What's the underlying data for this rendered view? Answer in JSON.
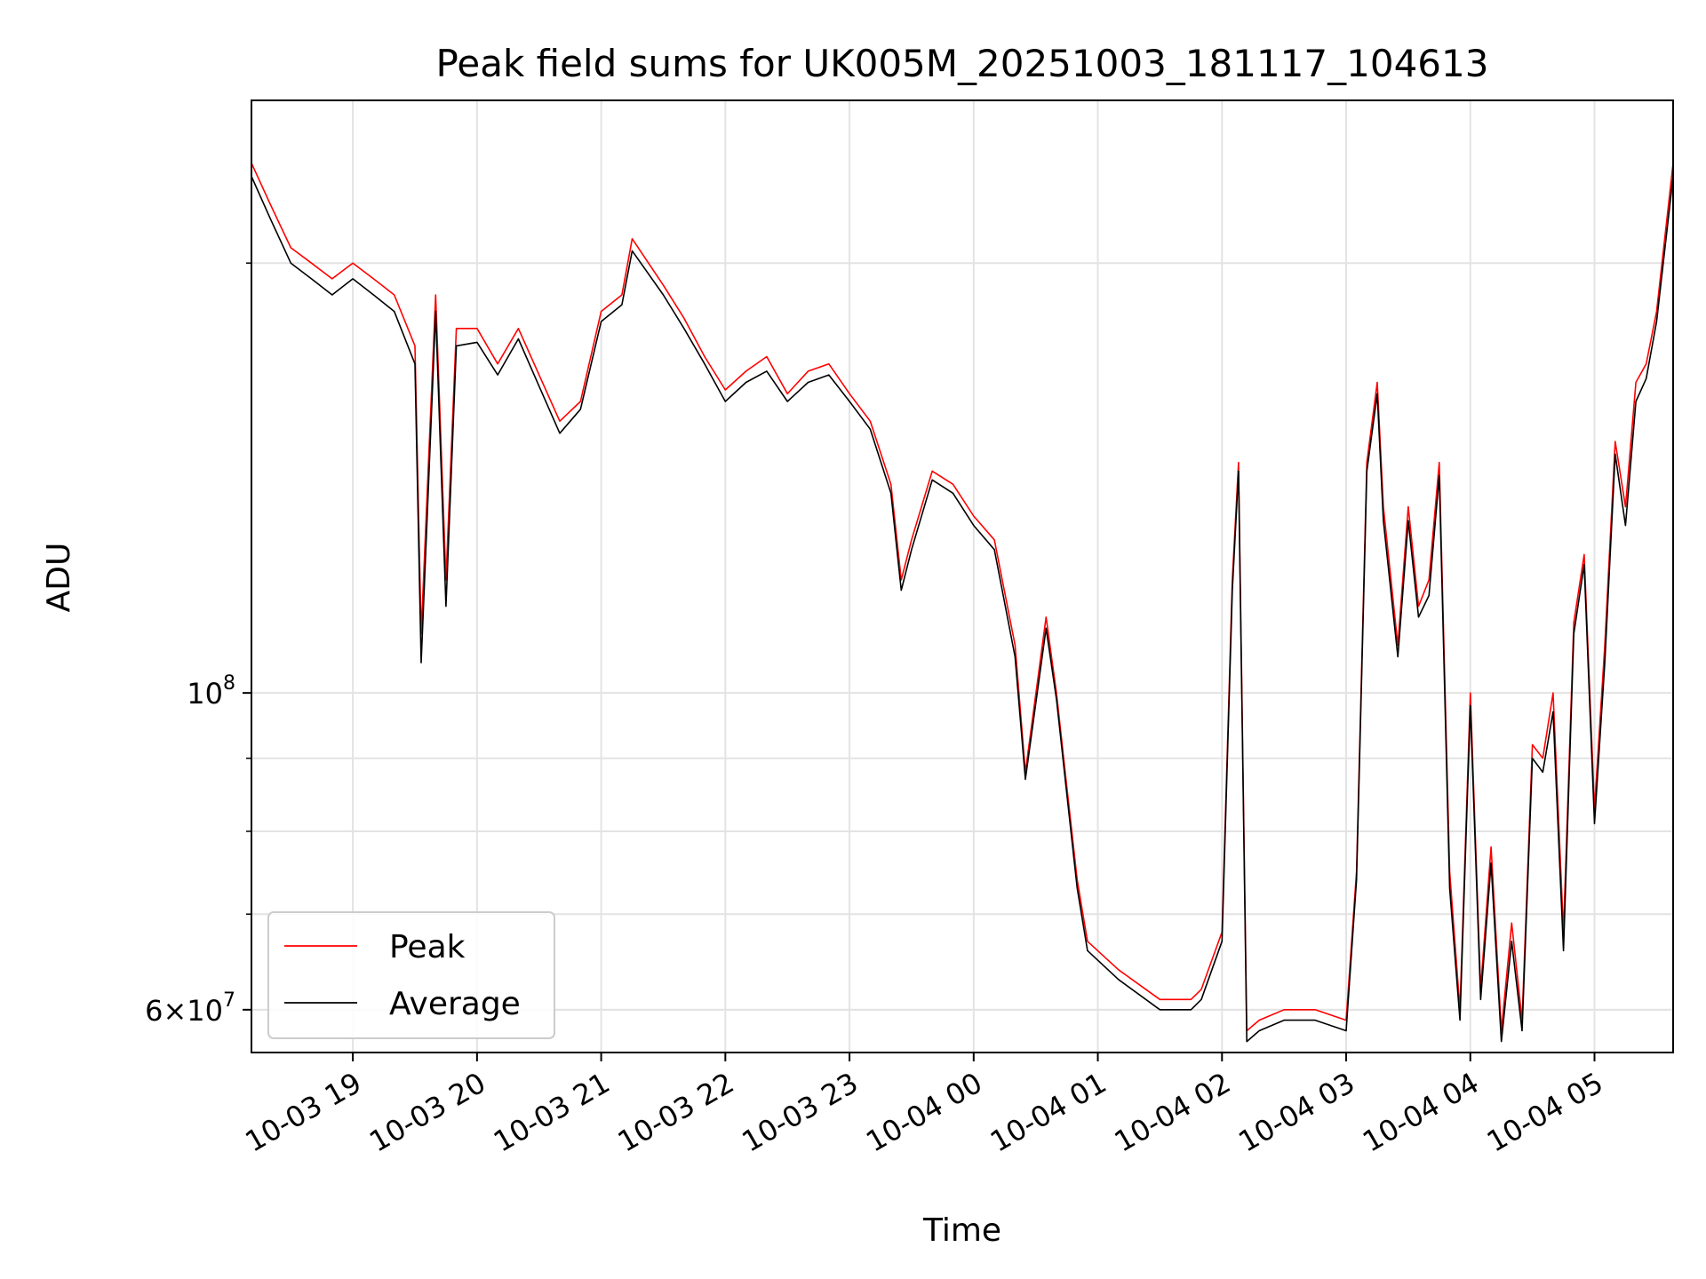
{
  "chart_data": {
    "type": "line",
    "title": "Peak field sums for UK005M_20251003_181117_104613",
    "xlabel": "Time",
    "ylabel": "ADU",
    "yscale": "log",
    "xlim": [
      "2025-10-03 18:11",
      "2025-10-04 05:38"
    ],
    "ylim": [
      56000000.0,
      260000000.0
    ],
    "grid": true,
    "legend_position": "lower-left",
    "x_ticks": [
      "2025-10-03 19:00",
      "2025-10-03 20:00",
      "2025-10-03 21:00",
      "2025-10-03 22:00",
      "2025-10-03 23:00",
      "2025-10-04 00:00",
      "2025-10-04 01:00",
      "2025-10-04 02:00",
      "2025-10-04 03:00",
      "2025-10-04 04:00",
      "2025-10-04 05:00"
    ],
    "x_tick_labels": [
      "10-03 19",
      "10-03 20",
      "10-03 21",
      "10-03 22",
      "10-03 23",
      "10-04 00",
      "10-04 01",
      "10-04 02",
      "10-04 03",
      "10-04 04",
      "10-04 05"
    ],
    "y_major_ticks": [
      {
        "value": 100000000,
        "label": "10^8"
      },
      {
        "value": 60000000,
        "label": "6×10^7"
      }
    ],
    "y_minor_ticks": [
      60000000,
      70000000,
      80000000,
      90000000,
      200000000
    ],
    "x": [
      "2025-10-03 18:11",
      "2025-10-03 18:20",
      "2025-10-03 18:30",
      "2025-10-03 18:40",
      "2025-10-03 18:50",
      "2025-10-03 19:00",
      "2025-10-03 19:10",
      "2025-10-03 19:20",
      "2025-10-03 19:30",
      "2025-10-03 19:33",
      "2025-10-03 19:40",
      "2025-10-03 19:45",
      "2025-10-03 19:50",
      "2025-10-03 20:00",
      "2025-10-03 20:10",
      "2025-10-03 20:20",
      "2025-10-03 20:30",
      "2025-10-03 20:40",
      "2025-10-03 20:50",
      "2025-10-03 21:00",
      "2025-10-03 21:10",
      "2025-10-03 21:15",
      "2025-10-03 21:30",
      "2025-10-03 21:40",
      "2025-10-03 21:50",
      "2025-10-03 22:00",
      "2025-10-03 22:10",
      "2025-10-03 22:20",
      "2025-10-03 22:30",
      "2025-10-03 22:40",
      "2025-10-03 22:50",
      "2025-10-03 23:00",
      "2025-10-03 23:10",
      "2025-10-03 23:20",
      "2025-10-03 23:25",
      "2025-10-03 23:30",
      "2025-10-03 23:40",
      "2025-10-03 23:50",
      "2025-10-04 00:00",
      "2025-10-04 00:10",
      "2025-10-04 00:20",
      "2025-10-04 00:25",
      "2025-10-04 00:35",
      "2025-10-04 00:40",
      "2025-10-04 00:45",
      "2025-10-04 00:50",
      "2025-10-04 00:55",
      "2025-10-04 01:10",
      "2025-10-04 01:30",
      "2025-10-04 01:45",
      "2025-10-04 01:50",
      "2025-10-04 02:00",
      "2025-10-04 02:05",
      "2025-10-04 02:08",
      "2025-10-04 02:12",
      "2025-10-04 02:18",
      "2025-10-04 02:30",
      "2025-10-04 02:45",
      "2025-10-04 03:00",
      "2025-10-04 03:05",
      "2025-10-04 03:10",
      "2025-10-04 03:15",
      "2025-10-04 03:18",
      "2025-10-04 03:25",
      "2025-10-04 03:30",
      "2025-10-04 03:35",
      "2025-10-04 03:40",
      "2025-10-04 03:45",
      "2025-10-04 03:50",
      "2025-10-04 03:55",
      "2025-10-04 04:00",
      "2025-10-04 04:05",
      "2025-10-04 04:10",
      "2025-10-04 04:15",
      "2025-10-04 04:20",
      "2025-10-04 04:25",
      "2025-10-04 04:30",
      "2025-10-04 04:35",
      "2025-10-04 04:40",
      "2025-10-04 04:45",
      "2025-10-04 04:50",
      "2025-10-04 04:55",
      "2025-10-04 05:00",
      "2025-10-04 05:05",
      "2025-10-04 05:10",
      "2025-10-04 05:15",
      "2025-10-04 05:20",
      "2025-10-04 05:25",
      "2025-10-04 05:30",
      "2025-10-04 05:38"
    ],
    "series": [
      {
        "name": "Peak",
        "color": "#ff0000",
        "values": [
          235000000,
          220000000,
          205000000,
          200000000,
          195000000,
          200000000,
          195000000,
          190000000,
          175000000,
          110000000,
          190000000,
          120000000,
          180000000,
          180000000,
          170000000,
          180000000,
          167000000,
          155000000,
          160000000,
          185000000,
          190000000,
          208000000,
          193000000,
          183000000,
          172000000,
          163000000,
          168000000,
          172000000,
          162000000,
          168000000,
          170000000,
          162000000,
          155000000,
          140000000,
          120000000,
          128000000,
          143000000,
          140000000,
          133000000,
          128000000,
          108000000,
          88000000,
          113000000,
          100000000,
          86000000,
          74000000,
          67000000,
          64000000,
          61000000,
          61000000,
          62000000,
          68000000,
          120000000,
          145000000,
          58000000,
          59000000,
          60000000,
          60000000,
          59000000,
          75000000,
          145000000,
          165000000,
          135000000,
          108000000,
          135000000,
          115000000,
          120000000,
          145000000,
          75000000,
          60000000,
          100000000,
          62000000,
          78000000,
          58000000,
          69000000,
          59000000,
          92000000,
          90000000,
          100000000,
          68000000,
          112000000,
          125000000,
          83000000,
          108000000,
          150000000,
          135000000,
          165000000,
          170000000,
          185000000,
          235000000
        ]
      },
      {
        "name": "Average",
        "color": "#000000",
        "values": [
          230000000,
          215000000,
          200000000,
          195000000,
          190000000,
          195000000,
          190000000,
          185000000,
          170000000,
          105000000,
          185000000,
          115000000,
          175000000,
          176000000,
          167000000,
          177000000,
          164000000,
          152000000,
          158000000,
          182000000,
          187000000,
          204000000,
          190000000,
          180000000,
          170000000,
          160000000,
          165000000,
          168000000,
          160000000,
          165000000,
          167000000,
          160000000,
          153000000,
          138000000,
          118000000,
          126000000,
          141000000,
          138000000,
          131000000,
          126000000,
          106000000,
          87000000,
          111000000,
          99000000,
          85000000,
          73000000,
          66000000,
          63000000,
          60000000,
          60000000,
          61000000,
          67000000,
          118000000,
          143000000,
          57000000,
          58000000,
          59000000,
          59000000,
          58000000,
          74000000,
          143000000,
          162000000,
          132000000,
          106000000,
          132000000,
          113000000,
          117000000,
          142000000,
          73000000,
          59000000,
          98000000,
          61000000,
          76000000,
          57000000,
          67000000,
          58000000,
          90000000,
          88000000,
          97000000,
          66000000,
          110000000,
          123000000,
          81000000,
          105000000,
          147000000,
          131000000,
          160000000,
          166000000,
          182000000,
          230000000
        ]
      }
    ]
  }
}
